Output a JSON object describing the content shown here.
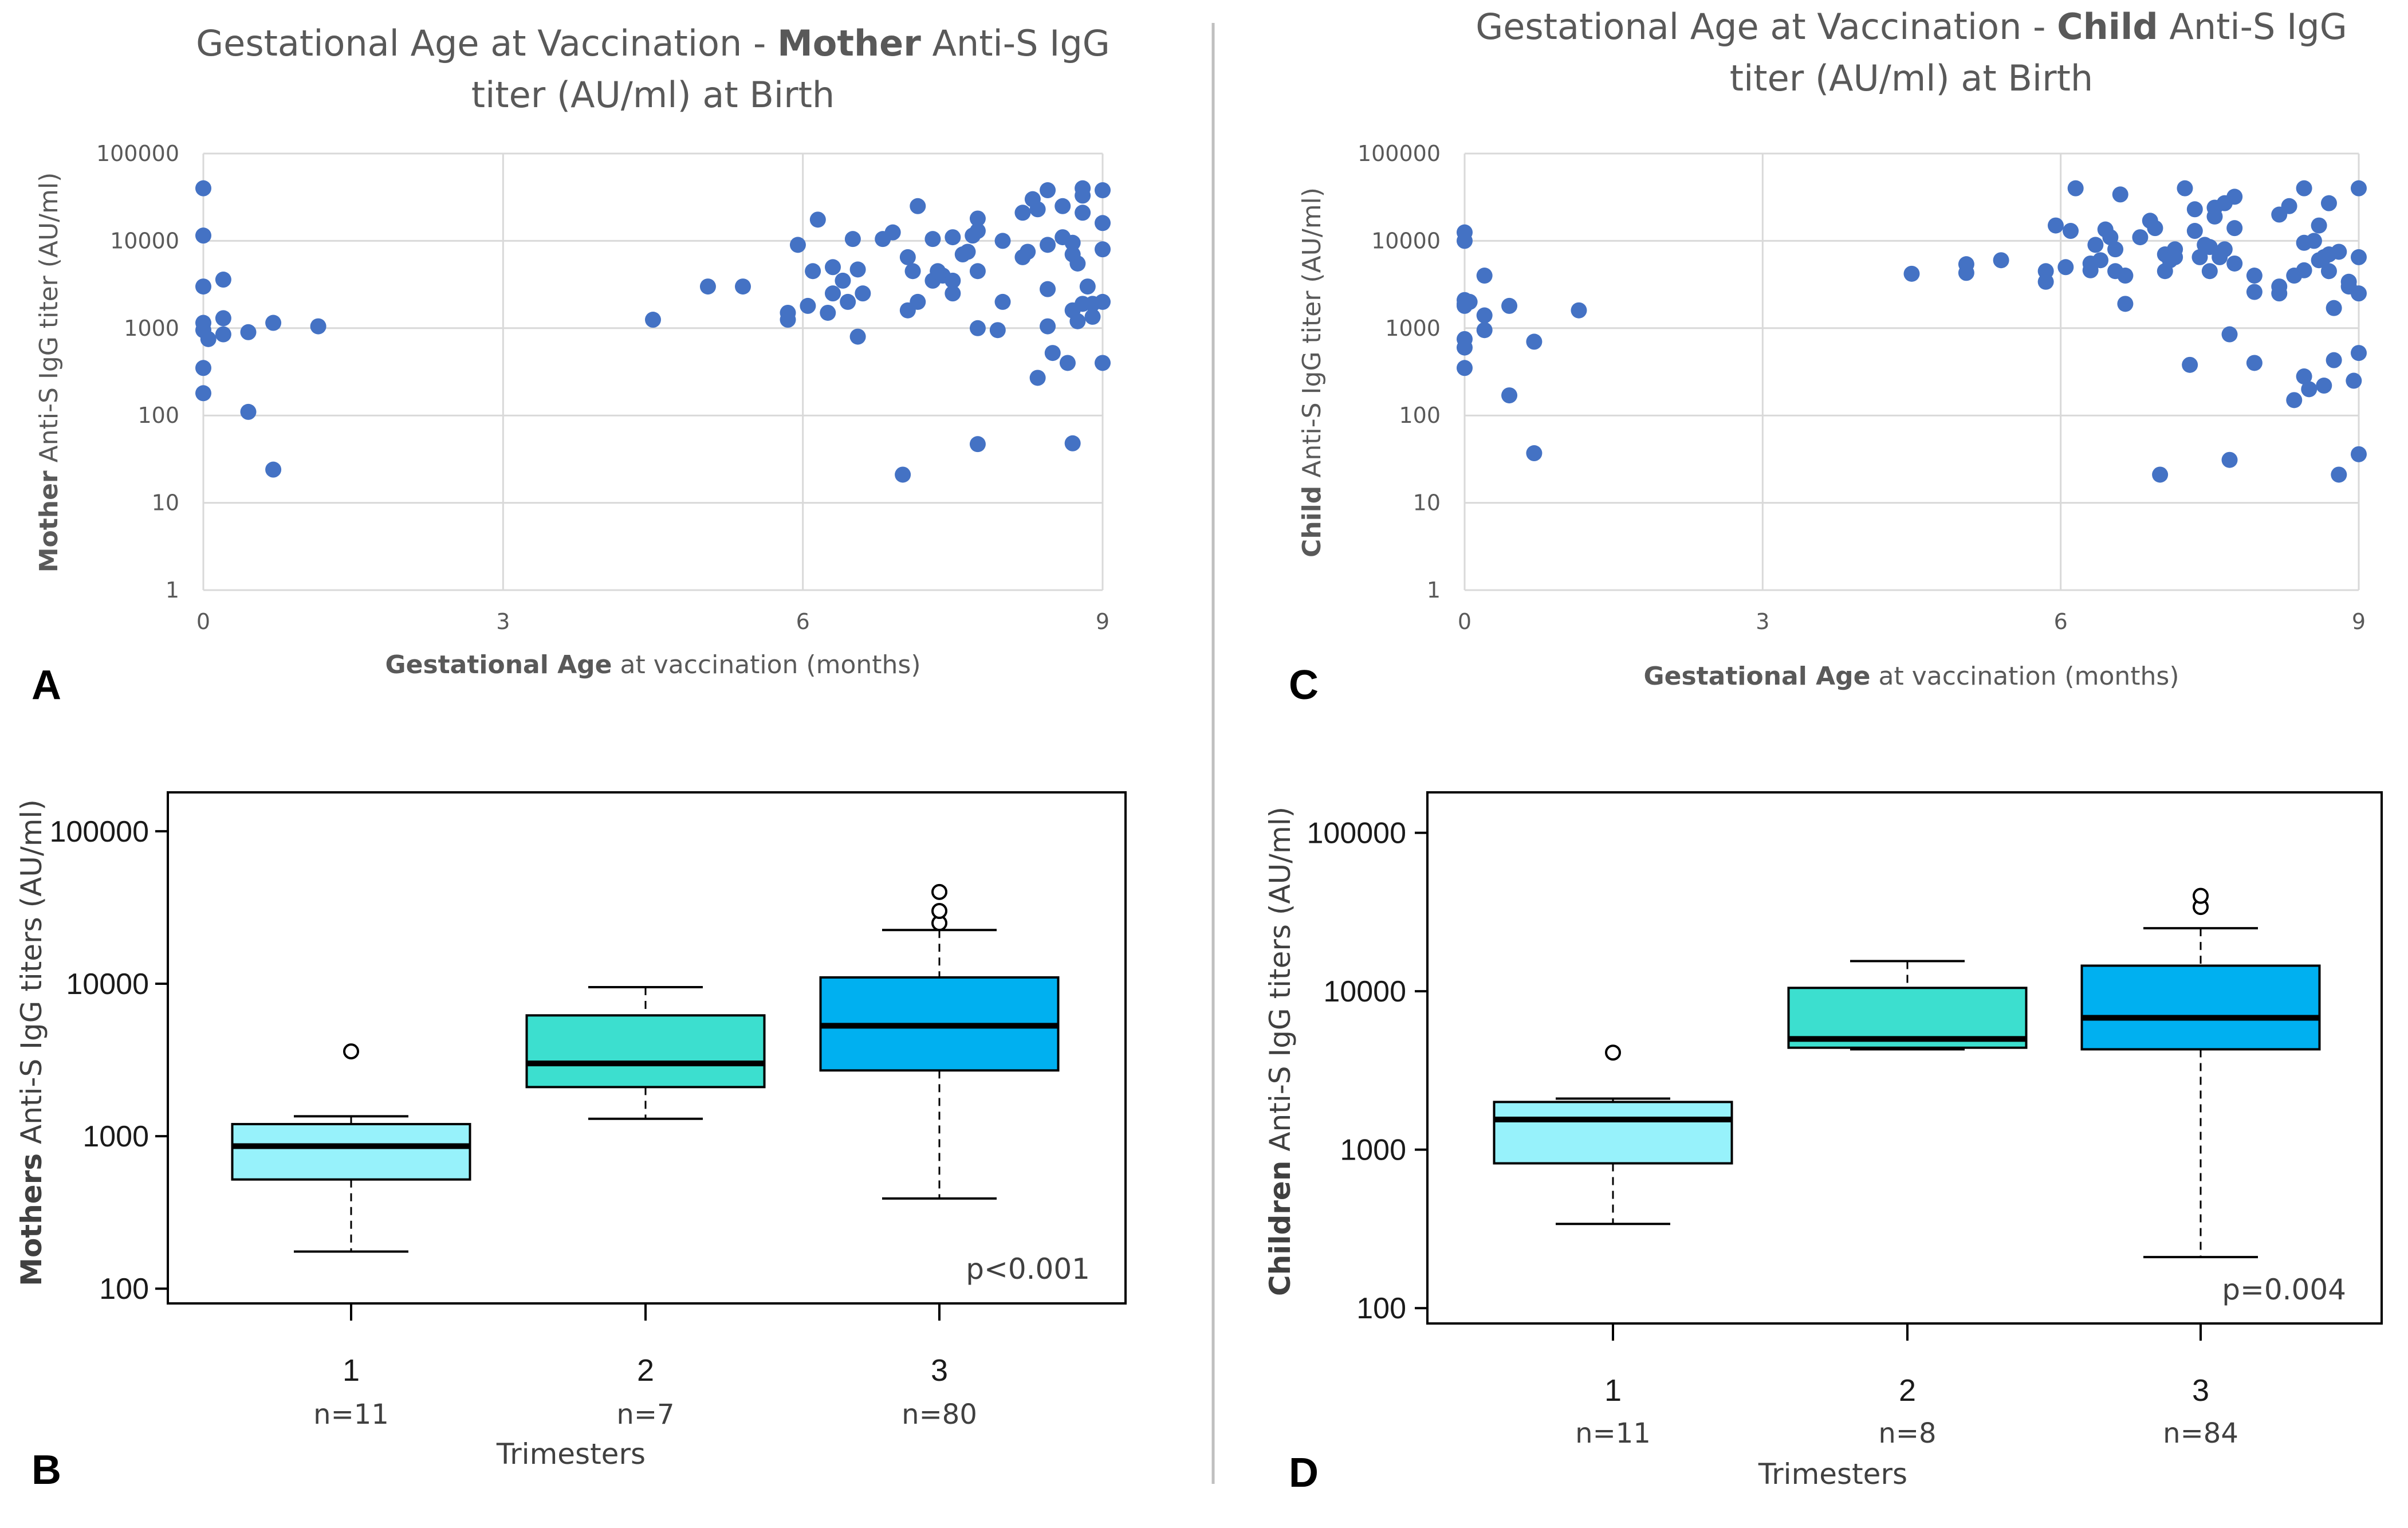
{
  "divider_color": "#bfbfbf",
  "scatter_color": "#4472c4",
  "chart_data": [
    {
      "id": "A",
      "panel_letter": "A",
      "type": "scatter",
      "title_pre": "Gestational Age at Vaccination - ",
      "title_bold": "Mother",
      "title_post": " Anti-S IgG",
      "title_line2": "titer (AU/ml) at Birth",
      "xlabel_bold": "Gestational Age",
      "xlabel_rest": " at vaccination (months)",
      "ylabel_bold": "Mother",
      "ylabel_rest": " Anti-S IgG titer (AU/ml)",
      "xlim": [
        0,
        9
      ],
      "xticks": [
        "0",
        "3",
        "6",
        "9"
      ],
      "yscale": "log",
      "ylim": [
        1,
        100000
      ],
      "yticks": [
        "1",
        "10",
        "100",
        "1000",
        "10000",
        "100000"
      ],
      "points": [
        [
          0,
          40000
        ],
        [
          0,
          11500
        ],
        [
          0,
          3000
        ],
        [
          0,
          1150
        ],
        [
          0,
          950
        ],
        [
          0,
          350
        ],
        [
          0,
          180
        ],
        [
          0.05,
          750
        ],
        [
          0.2,
          3600
        ],
        [
          0.2,
          1300
        ],
        [
          0.2,
          850
        ],
        [
          0.45,
          900
        ],
        [
          0.45,
          110
        ],
        [
          0.7,
          24
        ],
        [
          0.7,
          1150
        ],
        [
          1.15,
          1050
        ],
        [
          4.5,
          1250
        ],
        [
          5.05,
          3000
        ],
        [
          5.4,
          3000
        ],
        [
          5.85,
          1500
        ],
        [
          5.85,
          1250
        ],
        [
          5.95,
          9000
        ],
        [
          6.05,
          1800
        ],
        [
          6.1,
          4500
        ],
        [
          6.15,
          17500
        ],
        [
          6.25,
          1500
        ],
        [
          6.3,
          2500
        ],
        [
          6.3,
          5000
        ],
        [
          6.4,
          3500
        ],
        [
          6.45,
          2000
        ],
        [
          6.5,
          10500
        ],
        [
          6.55,
          4700
        ],
        [
          6.55,
          800
        ],
        [
          6.6,
          2500
        ],
        [
          6.8,
          10500
        ],
        [
          6.9,
          12500
        ],
        [
          7.0,
          21
        ],
        [
          7.05,
          1600
        ],
        [
          7.05,
          6500
        ],
        [
          7.1,
          4500
        ],
        [
          7.15,
          2000
        ],
        [
          7.15,
          25000
        ],
        [
          7.3,
          3500
        ],
        [
          7.3,
          10500
        ],
        [
          7.35,
          4500
        ],
        [
          7.4,
          4000
        ],
        [
          7.5,
          3500
        ],
        [
          7.5,
          2500
        ],
        [
          7.5,
          11000
        ],
        [
          7.6,
          7000
        ],
        [
          7.65,
          7500
        ],
        [
          7.7,
          11500
        ],
        [
          7.75,
          13000
        ],
        [
          7.75,
          4500
        ],
        [
          7.75,
          1000
        ],
        [
          7.75,
          18000
        ],
        [
          7.75,
          47
        ],
        [
          7.95,
          950
        ],
        [
          8.0,
          10000
        ],
        [
          8.0,
          2000
        ],
        [
          8.2,
          21000
        ],
        [
          8.2,
          6500
        ],
        [
          8.25,
          7500
        ],
        [
          8.3,
          30000
        ],
        [
          8.35,
          23000
        ],
        [
          8.35,
          270
        ],
        [
          8.45,
          38000
        ],
        [
          8.45,
          9000
        ],
        [
          8.45,
          2800
        ],
        [
          8.45,
          1050
        ],
        [
          8.5,
          520
        ],
        [
          8.6,
          25000
        ],
        [
          8.6,
          11000
        ],
        [
          8.65,
          400
        ],
        [
          8.7,
          9500
        ],
        [
          8.7,
          7000
        ],
        [
          8.7,
          1600
        ],
        [
          8.7,
          48
        ],
        [
          8.75,
          5500
        ],
        [
          8.75,
          1200
        ],
        [
          8.8,
          40000
        ],
        [
          8.8,
          33000
        ],
        [
          8.8,
          21000
        ],
        [
          8.8,
          1900
        ],
        [
          8.85,
          3000
        ],
        [
          8.9,
          1900
        ],
        [
          8.9,
          1350
        ],
        [
          9.0,
          38000
        ],
        [
          9.0,
          16000
        ],
        [
          9.0,
          8000
        ],
        [
          9.0,
          2000
        ],
        [
          9.0,
          400
        ]
      ]
    },
    {
      "id": "C",
      "panel_letter": "C",
      "type": "scatter",
      "title_pre": "Gestational Age at Vaccination - ",
      "title_bold": "Child",
      "title_post": " Anti-S IgG",
      "title_line2": "titer (AU/ml) at Birth",
      "xlabel_bold": "Gestational Age",
      "xlabel_rest": " at vaccination (months)",
      "ylabel_bold": "Child",
      "ylabel_rest": " Anti-S IgG titer (AU/ml)",
      "xlim": [
        0,
        9
      ],
      "xticks": [
        "0",
        "3",
        "6",
        "9"
      ],
      "yscale": "log",
      "ylim": [
        1,
        100000
      ],
      "yticks": [
        "1",
        "10",
        "100",
        "1000",
        "10000",
        "100000"
      ],
      "points": [
        [
          0,
          12500
        ],
        [
          0,
          10000
        ],
        [
          0,
          2100
        ],
        [
          0,
          1900
        ],
        [
          0,
          1800
        ],
        [
          0,
          750
        ],
        [
          0,
          600
        ],
        [
          0,
          350
        ],
        [
          0.05,
          2000
        ],
        [
          0.2,
          4000
        ],
        [
          0.2,
          1400
        ],
        [
          0.2,
          950
        ],
        [
          0.45,
          1800
        ],
        [
          0.45,
          170
        ],
        [
          0.7,
          37
        ],
        [
          0.7,
          700
        ],
        [
          1.15,
          1600
        ],
        [
          4.5,
          4200
        ],
        [
          5.05,
          5400
        ],
        [
          5.05,
          4300
        ],
        [
          5.4,
          6000
        ],
        [
          5.85,
          4500
        ],
        [
          5.85,
          3400
        ],
        [
          5.95,
          15000
        ],
        [
          6.05,
          5000
        ],
        [
          6.1,
          13000
        ],
        [
          6.15,
          40000
        ],
        [
          6.3,
          4600
        ],
        [
          6.3,
          5500
        ],
        [
          6.35,
          9000
        ],
        [
          6.4,
          6000
        ],
        [
          6.45,
          13500
        ],
        [
          6.5,
          11000
        ],
        [
          6.55,
          8000
        ],
        [
          6.55,
          4500
        ],
        [
          6.6,
          34000
        ],
        [
          6.65,
          4000
        ],
        [
          6.65,
          1900
        ],
        [
          6.8,
          11000
        ],
        [
          6.9,
          17000
        ],
        [
          6.95,
          14000
        ],
        [
          7.0,
          21
        ],
        [
          7.05,
          7000
        ],
        [
          7.05,
          4500
        ],
        [
          7.1,
          6000
        ],
        [
          7.15,
          8000
        ],
        [
          7.15,
          6500
        ],
        [
          7.25,
          40000
        ],
        [
          7.3,
          380
        ],
        [
          7.35,
          23000
        ],
        [
          7.35,
          13000
        ],
        [
          7.4,
          6500
        ],
        [
          7.45,
          9000
        ],
        [
          7.5,
          8500
        ],
        [
          7.5,
          4500
        ],
        [
          7.55,
          19000
        ],
        [
          7.55,
          24000
        ],
        [
          7.6,
          6500
        ],
        [
          7.65,
          8000
        ],
        [
          7.65,
          27000
        ],
        [
          7.7,
          850
        ],
        [
          7.7,
          31
        ],
        [
          7.75,
          32000
        ],
        [
          7.75,
          14000
        ],
        [
          7.75,
          5500
        ],
        [
          7.95,
          4000
        ],
        [
          7.95,
          2600
        ],
        [
          7.95,
          400
        ],
        [
          8.2,
          20000
        ],
        [
          8.2,
          3000
        ],
        [
          8.2,
          2500
        ],
        [
          8.3,
          25000
        ],
        [
          8.35,
          4000
        ],
        [
          8.35,
          150
        ],
        [
          8.45,
          40000
        ],
        [
          8.45,
          9500
        ],
        [
          8.45,
          4600
        ],
        [
          8.45,
          280
        ],
        [
          8.5,
          200
        ],
        [
          8.55,
          10000
        ],
        [
          8.6,
          6000
        ],
        [
          8.6,
          15000
        ],
        [
          8.65,
          6500
        ],
        [
          8.65,
          220
        ],
        [
          8.7,
          7000
        ],
        [
          8.7,
          4500
        ],
        [
          8.7,
          27000
        ],
        [
          8.75,
          1700
        ],
        [
          8.75,
          430
        ],
        [
          8.8,
          21
        ],
        [
          8.8,
          7500
        ],
        [
          8.9,
          3400
        ],
        [
          8.9,
          3000
        ],
        [
          8.95,
          250
        ],
        [
          9.0,
          40000
        ],
        [
          9.0,
          6500
        ],
        [
          9.0,
          2500
        ],
        [
          9.0,
          520
        ],
        [
          9.0,
          36
        ]
      ]
    },
    {
      "id": "B",
      "panel_letter": "B",
      "type": "boxplot",
      "ylabel_bold": "Mothers",
      "ylabel_rest": " Anti-S IgG titers (AU/ml)",
      "xlabel": "Trimesters",
      "yscale": "log",
      "ylim": [
        80,
        180000
      ],
      "yticks": [
        "100",
        "1000",
        "10000",
        "100000"
      ],
      "p_value": "p<0.001",
      "groups": [
        {
          "label": "1",
          "n": "n=11",
          "color": "#97f2fb",
          "min": 175,
          "q1": 520,
          "median": 860,
          "q3": 1200,
          "max": 1350,
          "outliers": [
            3600
          ]
        },
        {
          "label": "2",
          "n": "n=7",
          "color": "#3cdfcf",
          "min": 1300,
          "q1": 2100,
          "median": 3000,
          "q3": 6200,
          "max": 9500,
          "outliers": []
        },
        {
          "label": "3",
          "n": "n=80",
          "color": "#00b0f0",
          "min": 390,
          "q1": 2700,
          "median": 5300,
          "q3": 11000,
          "max": 22500,
          "outliers": [
            25000,
            30000,
            40000
          ]
        }
      ]
    },
    {
      "id": "D",
      "panel_letter": "D",
      "type": "boxplot",
      "ylabel_bold": "Children",
      "ylabel_rest": " Anti-S IgG titers (AU/ml)",
      "xlabel": "Trimesters",
      "yscale": "log",
      "ylim": [
        80,
        180000
      ],
      "yticks": [
        "100",
        "1000",
        "10000",
        "100000"
      ],
      "p_value": "p=0.004",
      "groups": [
        {
          "label": "1",
          "n": "n=11",
          "color": "#97f2fb",
          "min": 340,
          "q1": 820,
          "median": 1550,
          "q3": 2000,
          "max": 2100,
          "outliers": [
            4100
          ]
        },
        {
          "label": "2",
          "n": "n=8",
          "color": "#3cdfcf",
          "min": 4300,
          "q1": 4400,
          "median": 5000,
          "q3": 10500,
          "max": 15500,
          "outliers": []
        },
        {
          "label": "3",
          "n": "n=84",
          "color": "#00b0f0",
          "min": 210,
          "q1": 4300,
          "median": 6800,
          "q3": 14500,
          "max": 25000,
          "outliers": [
            34000,
            40000
          ]
        }
      ]
    }
  ]
}
